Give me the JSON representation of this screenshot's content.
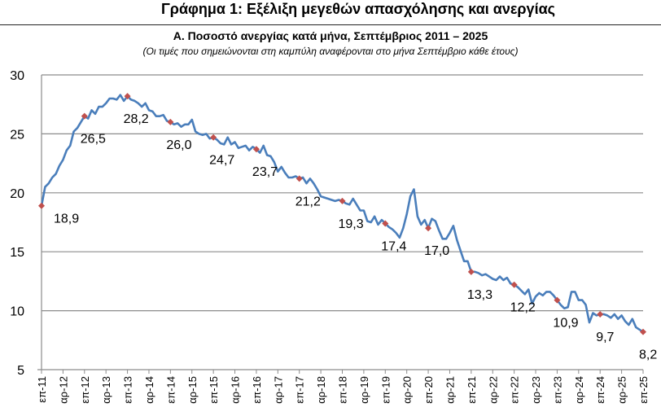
{
  "header": {
    "title": "Γράφημα 1: Εξέλιξη μεγεθών απασχόλησης και ανεργίας"
  },
  "chart_data": {
    "type": "line",
    "title": "Α. Ποσοστό ανεργίας κατά μήνα, Σεπτέμβριος 2011 – 2025",
    "subtitle": "(Οι τιμές που σημειώνονται στη καμπύλη αναφέρονται στο μήνα Σεπτέμβριο κάθε έτους)",
    "ylim": [
      5,
      30
    ],
    "yticks": [
      "5",
      "10",
      "15",
      "20",
      "25",
      "30"
    ],
    "grid": true,
    "x_start": "2011-09",
    "x_end": "2025-09",
    "xtick_labels": [
      "επ-11",
      "αρ-12",
      "επ-12",
      "αρ-13",
      "επ-13",
      "αρ-14",
      "επ-14",
      "αρ-15",
      "επ-15",
      "αρ-16",
      "επ-16",
      "αρ-17",
      "επ-17",
      "αρ-18",
      "επ-18",
      "αρ-19",
      "επ-19",
      "αρ-20",
      "επ-20",
      "αρ-21",
      "επ-21",
      "αρ-22",
      "επ-22",
      "αρ-23",
      "επ-23",
      "αρ-24",
      "επ-24",
      "αρ-25",
      "επ-25"
    ],
    "line_color": "#4a7ebb",
    "marker_color": "#c0504d",
    "values": [
      18.9,
      20.5,
      20.8,
      21.3,
      21.6,
      22.3,
      22.8,
      23.6,
      24.0,
      25.2,
      25.5,
      26.0,
      26.5,
      26.3,
      27.0,
      26.7,
      27.3,
      27.3,
      27.6,
      28.0,
      28.0,
      27.9,
      28.3,
      27.8,
      28.2,
      27.9,
      27.8,
      27.6,
      27.3,
      27.6,
      27.0,
      26.9,
      26.5,
      26.5,
      26.6,
      26.1,
      26.0,
      25.8,
      25.9,
      25.6,
      25.8,
      25.8,
      26.2,
      25.2,
      25.0,
      24.9,
      25.0,
      24.6,
      24.7,
      24.5,
      24.2,
      24.1,
      24.7,
      24.1,
      24.3,
      23.8,
      23.9,
      24.0,
      23.6,
      23.9,
      23.7,
      23.4,
      24.0,
      23.2,
      23.1,
      22.6,
      21.8,
      22.2,
      21.7,
      21.3,
      21.3,
      21.4,
      21.2,
      21.3,
      20.8,
      21.2,
      20.8,
      20.3,
      19.7,
      19.6,
      19.5,
      19.4,
      19.3,
      19.4,
      19.3,
      19.1,
      19.0,
      19.5,
      19.0,
      18.5,
      18.5,
      17.6,
      17.5,
      18.0,
      17.3,
      17.7,
      17.4,
      17.1,
      16.9,
      16.6,
      16.2,
      17.0,
      18.2,
      19.7,
      20.3,
      18.0,
      17.3,
      17.7,
      17.0,
      17.8,
      17.6,
      16.8,
      16.1,
      16.1,
      16.6,
      17.2,
      16.0,
      15.1,
      14.2,
      14.2,
      13.3,
      13.3,
      13.2,
      13.0,
      13.1,
      12.9,
      12.7,
      12.6,
      12.9,
      12.6,
      12.8,
      12.3,
      12.2,
      12.0,
      11.7,
      11.4,
      11.8,
      10.6,
      11.2,
      11.5,
      11.3,
      11.6,
      11.6,
      11.3,
      10.9,
      10.5,
      10.2,
      10.3,
      11.6,
      11.6,
      10.9,
      10.9,
      10.5,
      9.0,
      9.8,
      9.6,
      9.7,
      9.7,
      9.6,
      9.4,
      9.7,
      9.3,
      9.6,
      9.1,
      8.8,
      9.3,
      8.6,
      8.4,
      8.2
    ],
    "september_labels": [
      "18,9",
      "26,5",
      "28,2",
      "26,0",
      "24,7",
      "23,7",
      "21,2",
      "19,3",
      "17,4",
      "17,0",
      "13,3",
      "12,2",
      "10,9",
      "9,7",
      "8,2"
    ]
  }
}
